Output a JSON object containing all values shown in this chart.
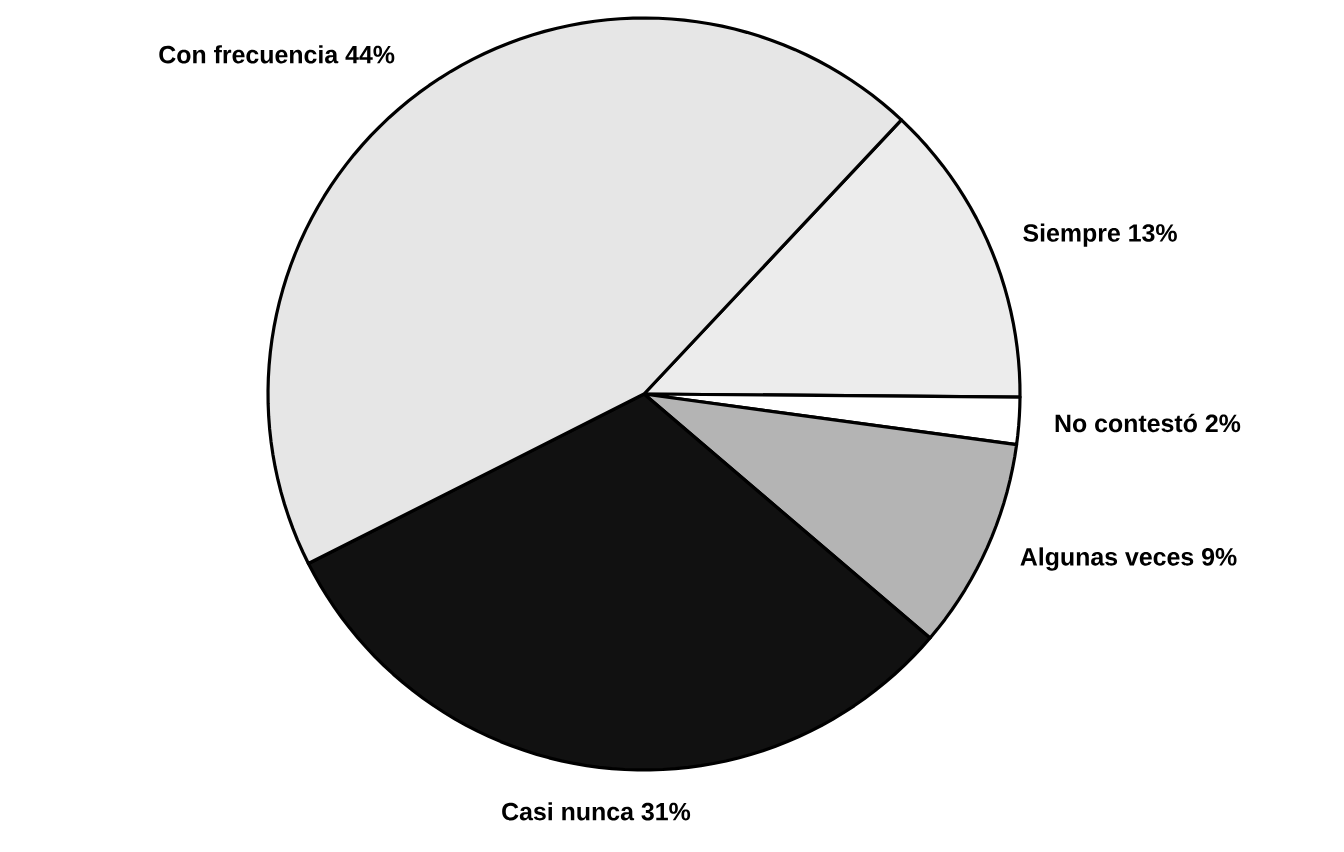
{
  "chart_data": {
    "type": "pie",
    "categories": [
      "Siempre",
      "No contestó",
      "Algunas veces",
      "Casi nunca",
      "Con frecuencia"
    ],
    "values": [
      13,
      2,
      9,
      31,
      44
    ],
    "value_labels": [
      "13%",
      "2%",
      "9%",
      "31%",
      "44%"
    ],
    "colors": [
      "#ececec",
      "#ffffff",
      "#b4b4b4",
      "#111111",
      "#e6e6e6"
    ]
  }
}
